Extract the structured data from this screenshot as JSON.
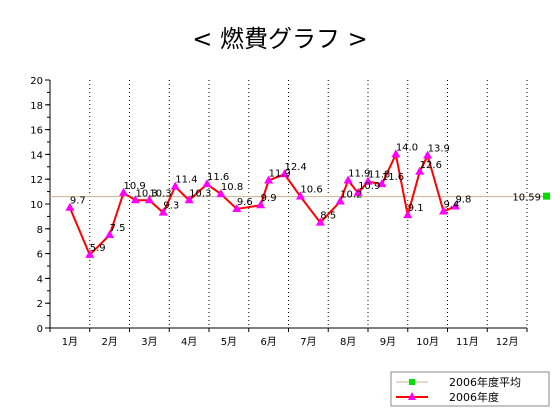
{
  "chart_data": {
    "type": "line",
    "title": "< 燃費グラフ >",
    "xlabel": "",
    "ylabel": "",
    "ylim": [
      0,
      20
    ],
    "ytick_step": 2,
    "categories": [
      "1月",
      "2月",
      "3月",
      "4月",
      "5月",
      "6月",
      "7月",
      "8月",
      "9月",
      "10月",
      "11月",
      "12月"
    ],
    "grid": "vertical-dotted",
    "legend_position": "bottom-right",
    "series": [
      {
        "name": "2006年度",
        "color": "#ff0000",
        "marker_color": "#ff00ff",
        "marker": "triangle",
        "points": [
          {
            "month": 1.0,
            "value": 9.7,
            "label": "9.7"
          },
          {
            "month": 1.5,
            "value": 5.9,
            "label": "5.9"
          },
          {
            "month": 2.0,
            "value": 7.5,
            "label": "7.5"
          },
          {
            "month": 2.35,
            "value": 10.9,
            "label": "10.9"
          },
          {
            "month": 2.65,
            "value": 10.3,
            "label": "10.3"
          },
          {
            "month": 3.0,
            "value": 10.3,
            "label": "10.3"
          },
          {
            "month": 3.35,
            "value": 9.3,
            "label": "9.3"
          },
          {
            "month": 3.65,
            "value": 11.4,
            "label": "11.4"
          },
          {
            "month": 4.0,
            "value": 10.3,
            "label": "10.3"
          },
          {
            "month": 4.45,
            "value": 11.6,
            "label": "11.6"
          },
          {
            "month": 4.8,
            "value": 10.8,
            "label": "10.8"
          },
          {
            "month": 5.2,
            "value": 9.6,
            "label": "9.6"
          },
          {
            "month": 5.8,
            "value": 9.9,
            "label": "9.9"
          },
          {
            "month": 6.0,
            "value": 11.9,
            "label": "11.9"
          },
          {
            "month": 6.4,
            "value": 12.4,
            "label": "12.4"
          },
          {
            "month": 6.8,
            "value": 10.6,
            "label": "10.6"
          },
          {
            "month": 7.3,
            "value": 8.5,
            "label": "8.5"
          },
          {
            "month": 7.8,
            "value": 10.2,
            "label": "10.2"
          },
          {
            "month": 8.0,
            "value": 11.9,
            "label": "11.9"
          },
          {
            "month": 8.25,
            "value": 10.9,
            "label": "10.9"
          },
          {
            "month": 8.5,
            "value": 11.8,
            "label": "11.8"
          },
          {
            "month": 8.85,
            "value": 11.6,
            "label": "11.6"
          },
          {
            "month": 9.2,
            "value": 14.0,
            "label": "14.0"
          },
          {
            "month": 9.5,
            "value": 9.1,
            "label": "9.1"
          },
          {
            "month": 9.8,
            "value": 12.6,
            "label": "12.6"
          },
          {
            "month": 10.0,
            "value": 13.9,
            "label": "13.9"
          },
          {
            "month": 10.4,
            "value": 9.4,
            "label": "9.4"
          },
          {
            "month": 10.7,
            "value": 9.8,
            "label": "9.8"
          }
        ]
      },
      {
        "name": "2006年度平均",
        "color": "#c8b496",
        "marker_color": "#00e000",
        "marker": "square",
        "value": 10.59,
        "label": "10.59"
      }
    ]
  }
}
